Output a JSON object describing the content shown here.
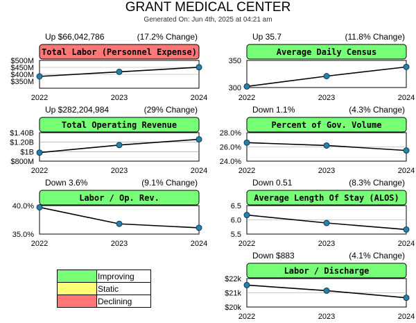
{
  "header": {
    "title": "GRANT MEDICAL CENTER",
    "subtitle": "Generated On: Jun 4th, 2025 at 04:21 am"
  },
  "legend": [
    {
      "label": "Improving",
      "color": "#77ff77"
    },
    {
      "label": "Static",
      "color": "#ffff77"
    },
    {
      "label": "Declining",
      "color": "#ff7777"
    }
  ],
  "colors": {
    "improving": "#77ff77",
    "static": "#ffff77",
    "declining": "#ff7777"
  },
  "chart_data": [
    {
      "type": "line",
      "title": "Total Labor (Personnel Expense)",
      "status": "declining",
      "summary": "Up $66,042,786",
      "change": "(17.2% Change)",
      "x": [
        "2022",
        "2023",
        "2024"
      ],
      "values": [
        385000000,
        418000000,
        451000000
      ],
      "ylim": [
        350000000,
        500000000
      ],
      "yticks": [
        {
          "v": 500000000,
          "label": "$500M"
        },
        {
          "v": 450000000,
          "label": "$450M"
        },
        {
          "v": 400000000,
          "label": "$400M"
        },
        {
          "v": 350000000,
          "label": "$350M"
        }
      ]
    },
    {
      "type": "line",
      "title": "Average Daily Census",
      "status": "improving",
      "summary": "Up 35.7",
      "change": "(11.8% Change)",
      "x": [
        "2022",
        "2023",
        "2024"
      ],
      "values": [
        302,
        321,
        338
      ],
      "ylim": [
        300,
        350
      ],
      "yticks": [
        {
          "v": 350,
          "label": "350"
        },
        {
          "v": 300,
          "label": "300"
        }
      ]
    },
    {
      "type": "line",
      "title": "Total Operating Revenue",
      "status": "improving",
      "summary": "Up $282,204,984",
      "change": "(29% Change)",
      "x": [
        "2022",
        "2023",
        "2024"
      ],
      "values": [
        980000000,
        1140000000,
        1260000000
      ],
      "ylim": [
        800000000,
        1400000000
      ],
      "yticks": [
        {
          "v": 1400000000,
          "label": "$1.40B"
        },
        {
          "v": 1200000000,
          "label": "$1.20B"
        },
        {
          "v": 1000000000,
          "label": "$1B"
        },
        {
          "v": 800000000,
          "label": "$800M"
        }
      ]
    },
    {
      "type": "line",
      "title": "Percent of Gov. Volume",
      "status": "improving",
      "summary": "Down 1.1%",
      "change": "(4.3% Change)",
      "x": [
        "2022",
        "2023",
        "2024"
      ],
      "values": [
        26.6,
        26.2,
        25.5
      ],
      "ylim": [
        24.0,
        28.0
      ],
      "yticks": [
        {
          "v": 28,
          "label": "28.0%"
        },
        {
          "v": 26,
          "label": "26.0%"
        },
        {
          "v": 24,
          "label": "24.0%"
        }
      ]
    },
    {
      "type": "line",
      "title": "Labor / Op. Rev.",
      "status": "improving",
      "summary": "Down 3.6%",
      "change": "(9.1% Change)",
      "x": [
        "2022",
        "2023",
        "2024"
      ],
      "values": [
        39.7,
        36.8,
        36.1
      ],
      "ylim": [
        35.0,
        40.0
      ],
      "yticks": [
        {
          "v": 40,
          "label": "40.0%"
        },
        {
          "v": 35,
          "label": "35.0%"
        }
      ]
    },
    {
      "type": "line",
      "title": "Average Length Of Stay (ALOS)",
      "status": "improving",
      "summary": "Down 0.51",
      "change": "(8.3% Change)",
      "x": [
        "2022",
        "2023",
        "2024"
      ],
      "values": [
        6.17,
        5.89,
        5.66
      ],
      "ylim": [
        5.5,
        6.5
      ],
      "yticks": [
        {
          "v": 6.5,
          "label": "6.5"
        },
        {
          "v": 6.0,
          "label": "6.0"
        },
        {
          "v": 5.5,
          "label": "5.5"
        }
      ]
    },
    {
      "type": "line",
      "title": "Labor / Discharge",
      "status": "improving",
      "summary": "Down $883",
      "change": "(4.1% Change)",
      "x": [
        "2022",
        "2023",
        "2024"
      ],
      "values": [
        21540,
        21150,
        20650
      ],
      "ylim": [
        20000,
        22000
      ],
      "yticks": [
        {
          "v": 22000,
          "label": "$22k"
        },
        {
          "v": 21000,
          "label": "$21k"
        },
        {
          "v": 20000,
          "label": "$20k"
        }
      ]
    }
  ]
}
